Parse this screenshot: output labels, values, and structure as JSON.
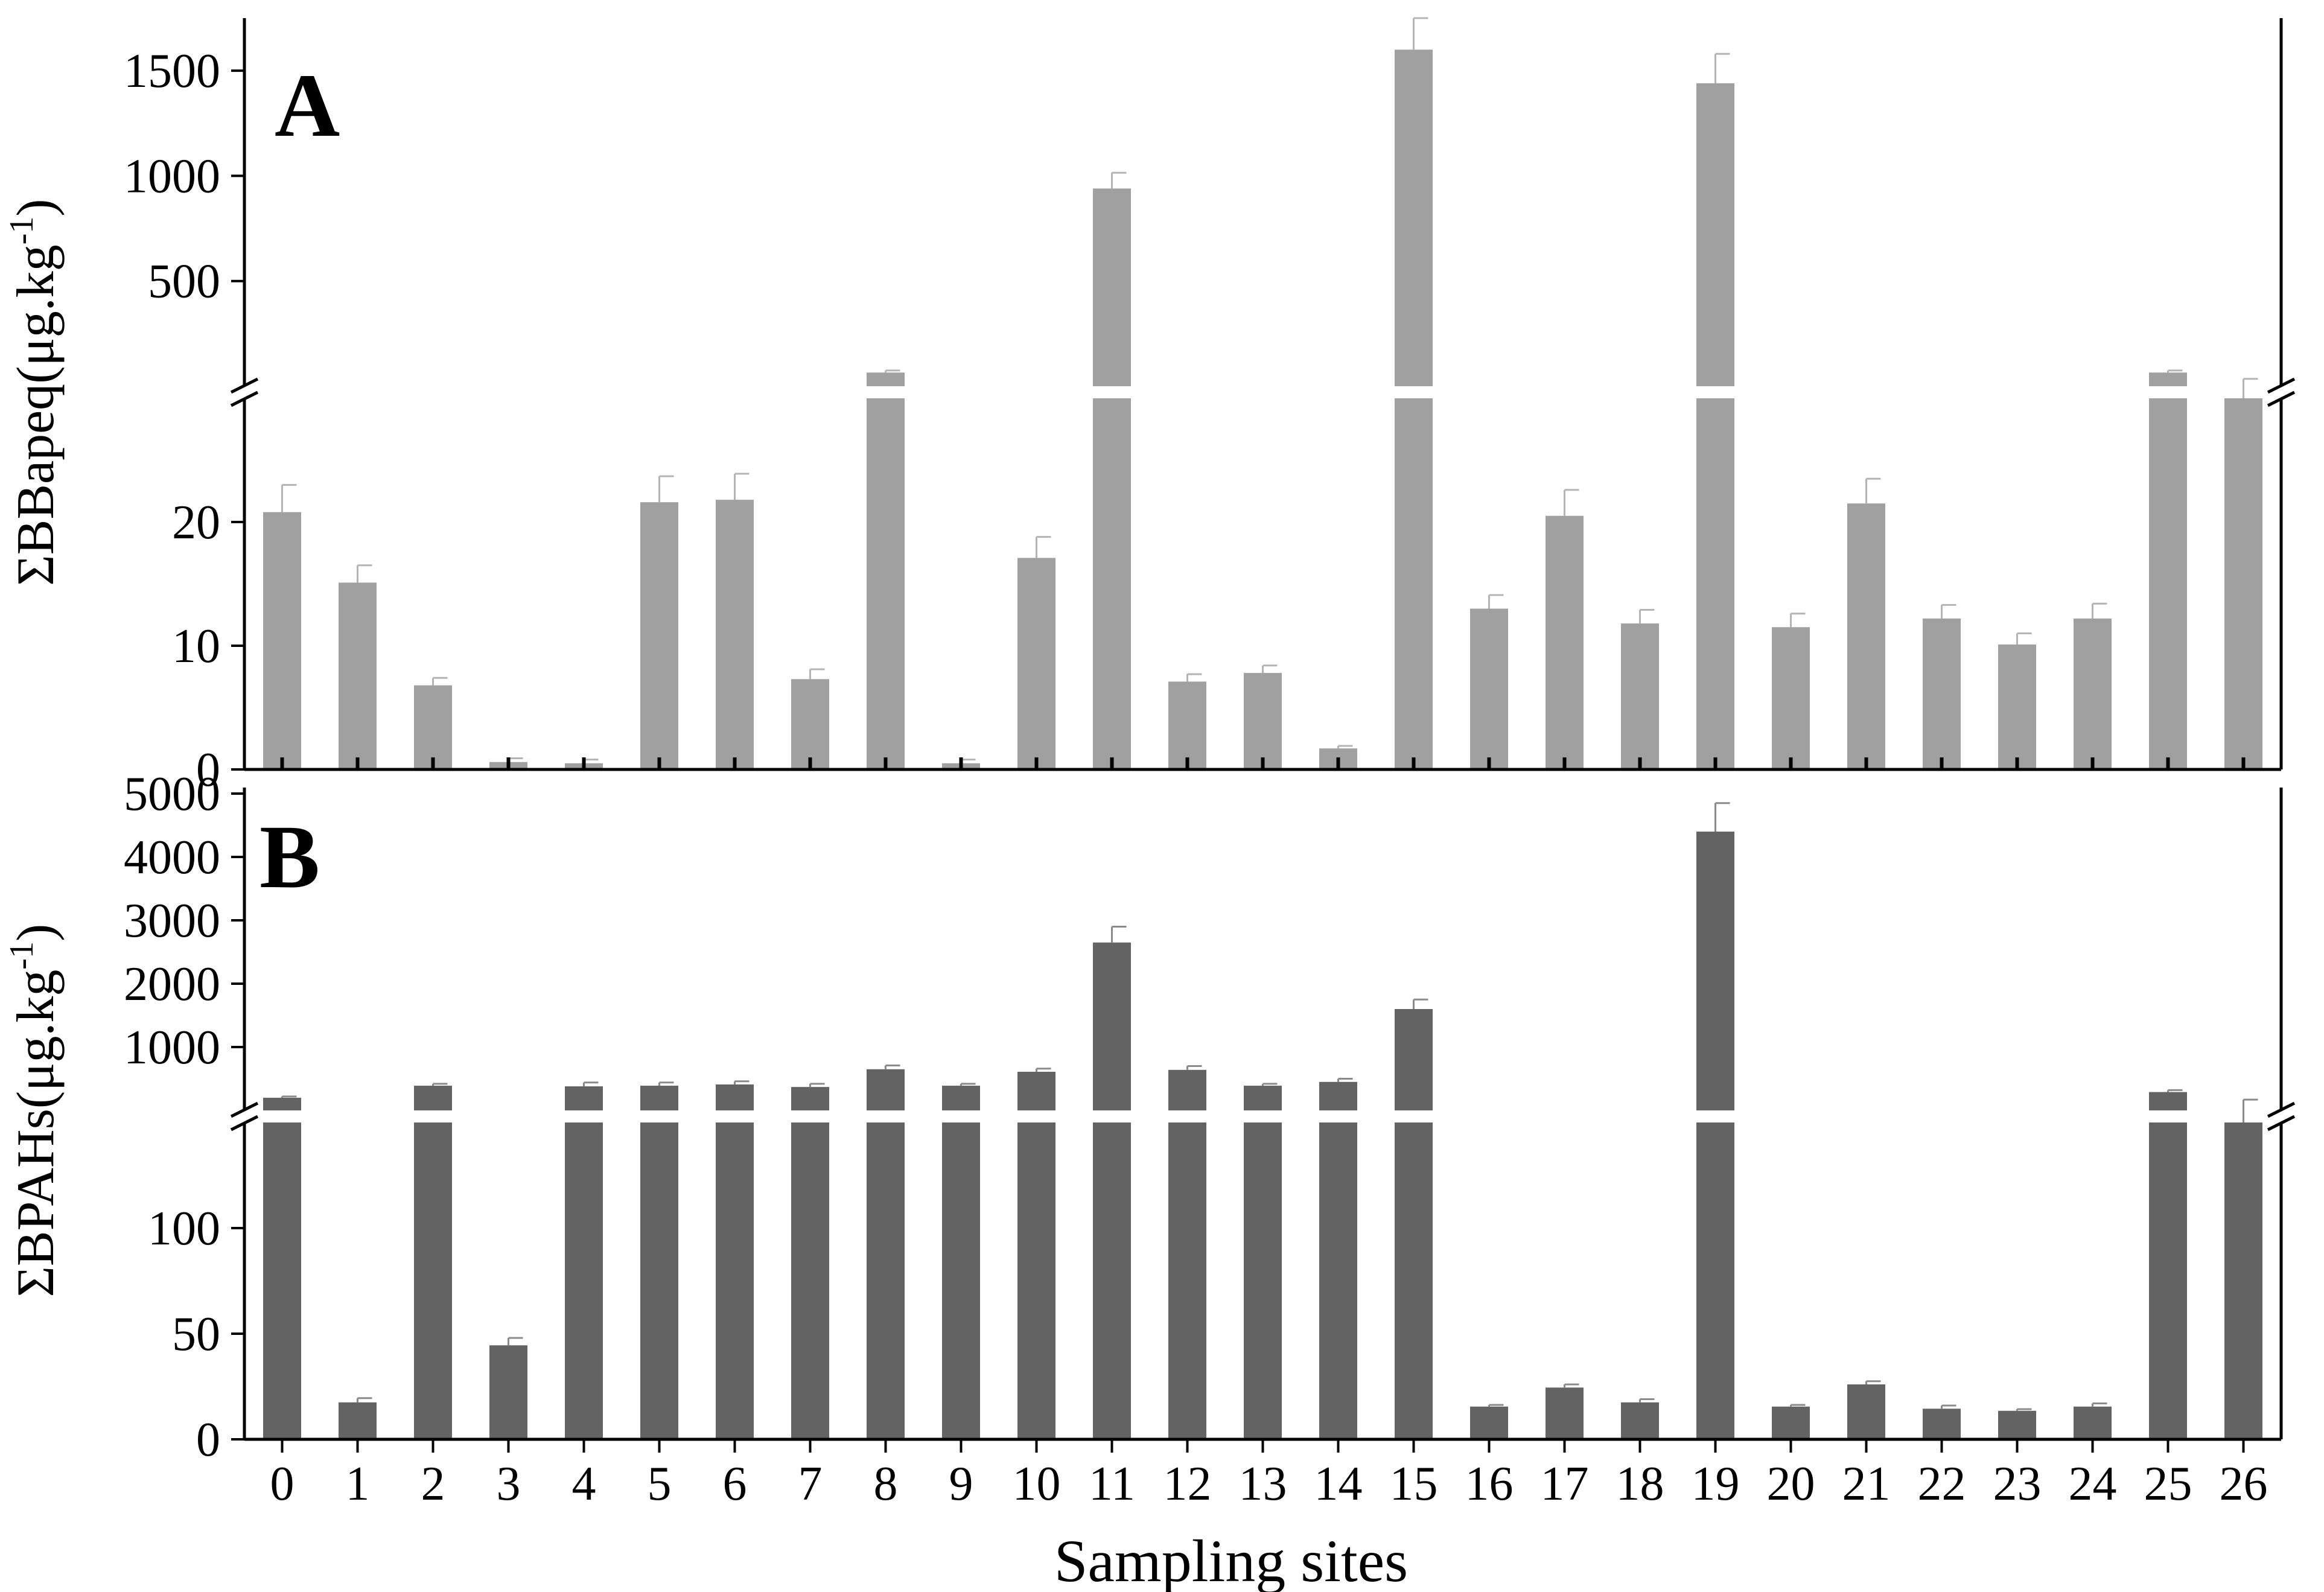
{
  "chart_data": [
    {
      "type": "bar",
      "panel_label": "A",
      "ylabel": "ΣBBapeq(μg.kg-1)",
      "ylabel_parts": {
        "main": "ΣBBapeq(μg.kg",
        "sup": "-1",
        "close": ")"
      },
      "xlabel": "Sampling sites",
      "categories": [
        "0",
        "1",
        "2",
        "3",
        "4",
        "5",
        "6",
        "7",
        "8",
        "9",
        "10",
        "11",
        "12",
        "13",
        "14",
        "15",
        "16",
        "17",
        "18",
        "19",
        "20",
        "21",
        "22",
        "23",
        "24",
        "25",
        "26"
      ],
      "values": [
        20.8,
        15.1,
        6.8,
        0.6,
        0.5,
        21.6,
        21.8,
        7.3,
        65,
        0.5,
        17.1,
        940,
        7.1,
        7.8,
        1.7,
        1600,
        13.0,
        20.5,
        11.8,
        1440,
        11.5,
        21.5,
        12.2,
        10.1,
        12.2,
        65,
        30
      ],
      "errors": [
        2.2,
        1.4,
        0.6,
        0.3,
        0.3,
        2.1,
        2.1,
        0.8,
        10,
        0.3,
        1.7,
        75,
        0.6,
        0.6,
        0.2,
        150,
        1.1,
        2.1,
        1.1,
        140,
        1.1,
        2.0,
        1.1,
        0.9,
        1.2,
        10,
        5
      ],
      "axis_break": {
        "lower": [
          0,
          30
        ],
        "upper": [
          0,
          1750
        ]
      },
      "yticks_lower": [
        0,
        10,
        20
      ],
      "yticks_upper": [
        500,
        1000,
        1500
      ],
      "bar_color": "#a0a0a0",
      "error_color": "#b4b4b4"
    },
    {
      "type": "bar",
      "panel_label": "B",
      "ylabel": "ΣBPAHs(μg.kg-1)",
      "ylabel_parts": {
        "main": "ΣBPAHs(μg.kg",
        "sup": "-1",
        "close": ")"
      },
      "xlabel": "Sampling sites",
      "categories": [
        "0",
        "1",
        "2",
        "3",
        "4",
        "5",
        "6",
        "7",
        "8",
        "9",
        "10",
        "11",
        "12",
        "13",
        "14",
        "15",
        "16",
        "17",
        "18",
        "19",
        "20",
        "21",
        "22",
        "23",
        "24",
        "25",
        "26"
      ],
      "values": [
        200,
        17.5,
        390,
        44.5,
        380,
        390,
        410,
        370,
        650,
        390,
        610,
        2650,
        640,
        390,
        450,
        1600,
        15.5,
        24.5,
        17.5,
        4400,
        15.5,
        26,
        14.5,
        13.5,
        15.5,
        290,
        150
      ],
      "errors": [
        20,
        2,
        30,
        3.5,
        60,
        50,
        50,
        50,
        60,
        30,
        50,
        250,
        60,
        30,
        50,
        150,
        0.8,
        1.5,
        1.5,
        450,
        0.8,
        1.5,
        1.5,
        0.8,
        1.5,
        30,
        20
      ],
      "axis_break": {
        "lower": [
          0,
          150
        ],
        "upper": [
          0,
          5000
        ]
      },
      "yticks_lower": [
        0,
        50,
        100
      ],
      "yticks_upper": [
        1000,
        2000,
        3000,
        4000,
        5000
      ],
      "bar_color": "#636363",
      "error_color": "#8a8a8a"
    }
  ],
  "xaxis_title": "Sampling sites"
}
